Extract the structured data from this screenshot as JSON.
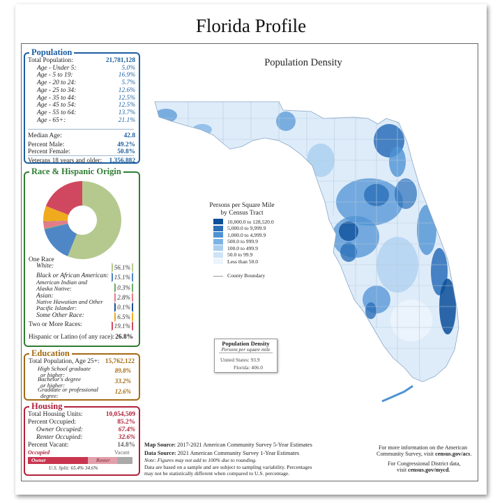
{
  "title": "Florida Profile",
  "population": {
    "heading": "Population",
    "rows": [
      {
        "label": "Total Population:",
        "value": "21,781,128",
        "italic": false
      },
      {
        "label": "Age - Under 5:",
        "value": "5.0%",
        "italic": true
      },
      {
        "label": "Age - 5 to 19:",
        "value": "16.9%",
        "italic": true
      },
      {
        "label": "Age - 20 to 24:",
        "value": "5.7%",
        "italic": true
      },
      {
        "label": "Age - 25 to 34:",
        "value": "12.6%",
        "italic": true
      },
      {
        "label": "Age - 35 to 44:",
        "value": "12.5%",
        "italic": true
      },
      {
        "label": "Age - 45 to 54:",
        "value": "12.5%",
        "italic": true
      },
      {
        "label": "Age - 55 to 64:",
        "value": "13.7%",
        "italic": true
      },
      {
        "label": "Age - 65+:",
        "value": "21.1%",
        "italic": true
      }
    ],
    "median_label": "Median Age:",
    "median_value": "42.8",
    "male_label": "Percent Male:",
    "male_value": "49.2%",
    "female_label": "Percent Female:",
    "female_value": "50.8%",
    "veterans_label": "Veterans 18 years and older:",
    "veterans_value": "1,356,882"
  },
  "race": {
    "heading": "Race & Hispanic Origin",
    "one_race_label": "One Race",
    "items": [
      {
        "label": "White:",
        "value": "56.1%",
        "color": "#b5c98e",
        "pct": 56.1
      },
      {
        "label": "Black or African American:",
        "value": "15.1%",
        "color": "#4f86c6",
        "pct": 15.1
      },
      {
        "label": "American Indian and Alaska Native:",
        "value": "0.3%",
        "color": "#6aaa64",
        "pct": 0.3
      },
      {
        "label": "Asian:",
        "value": "2.8%",
        "color": "#e37c89",
        "pct": 2.8
      },
      {
        "label": "Native Hawaiian and Other Pacific Islander:",
        "value": "0.1%",
        "color": "#1d4f9c",
        "pct": 0.1
      },
      {
        "label": "Some Other Race:",
        "value": "6.5%",
        "color": "#f0aa1e",
        "pct": 6.5
      },
      {
        "label": "Two or More Races:",
        "value": "19.1%",
        "color": "#d0485f",
        "pct": 19.1
      }
    ],
    "hispanic_label": "Hispanic or Latino (of any race):",
    "hispanic_value": "26.8%"
  },
  "education": {
    "heading": "Education",
    "total_label": "Total Population, Age 25+:",
    "total_value": "15,762,122",
    "rows": [
      {
        "l1": "High School  graduate",
        "l2": "or higher:",
        "value": "89.8%"
      },
      {
        "l1": "Bachelor's degree",
        "l2": "or higher:",
        "value": "33.2%"
      },
      {
        "l1": "Graduate or professional",
        "l2": "degree:",
        "value": "12.6%"
      }
    ]
  },
  "housing": {
    "heading": "Housing",
    "units_label": "Total Housing Units:",
    "units_value": "10,054,509",
    "occ_label": "Percent Occupied:",
    "occ_value": "85.2%",
    "owner_label": "Owner Occupied:",
    "owner_value": "67.4%",
    "renter_label": "Renter Occupied:",
    "renter_value": "32.6%",
    "vacant_label": "Percent Vacant:",
    "vacant_value": "14.8%",
    "bar_occupied": "Occupied",
    "bar_vacant": "Vacant",
    "bar_owner": "Owner",
    "bar_renter": "Renter",
    "occupied_fraction": 0.852,
    "owner_fraction": 0.674,
    "split_label": "U.S. Split: 65.4%  34.6%"
  },
  "map": {
    "title": "Population Density",
    "legend_title": [
      "Persons per Square Mile",
      "by Census Tract"
    ],
    "legend": [
      {
        "label": "10,000.0 to 128,520.0",
        "color": "#0b4f98"
      },
      {
        "label": "5,000.0 to 9,999.9",
        "color": "#2a6fb8"
      },
      {
        "label": "1,000.0 to 4,999.9",
        "color": "#4f93d4"
      },
      {
        "label": "500.0 to 999.9",
        "color": "#7db3e4"
      },
      {
        "label": "100.0 to 499.9",
        "color": "#a9cfef"
      },
      {
        "label": "50.0 to 99.9",
        "color": "#cfe3f6"
      },
      {
        "label": "Less than 50.0",
        "color": "#ecf4fc"
      }
    ],
    "county_boundary": "County Boundary",
    "box_title": "Population Density",
    "box_sub": "Persons per square mile",
    "us_label": "United States:",
    "us_value": "93.9",
    "fl_label": "Florida:",
    "fl_value": "406.0"
  },
  "footer": {
    "map_source_b": "Map Source:",
    "map_source": " 2017-2021 American Community Survey 5-Year Estimates",
    "data_source_b": "Data Source:",
    "data_source": " 2021 American Community Survey 1-Year Estimates",
    "note": "Note: Figures may not add to 100% due to rounding.",
    "sample1": "Data are based on a sample and are subject to sampling variability. Percentages",
    "sample2": "may not be statistically different when compared to U.S. percentage.",
    "info1": "For more information on the American",
    "info2": "Community Survey, visit ",
    "info2b": "census.gov/acs",
    "cong1": "For Congressional District data,",
    "cong2": "visit ",
    "cong2b": "census.gov/mycd"
  }
}
